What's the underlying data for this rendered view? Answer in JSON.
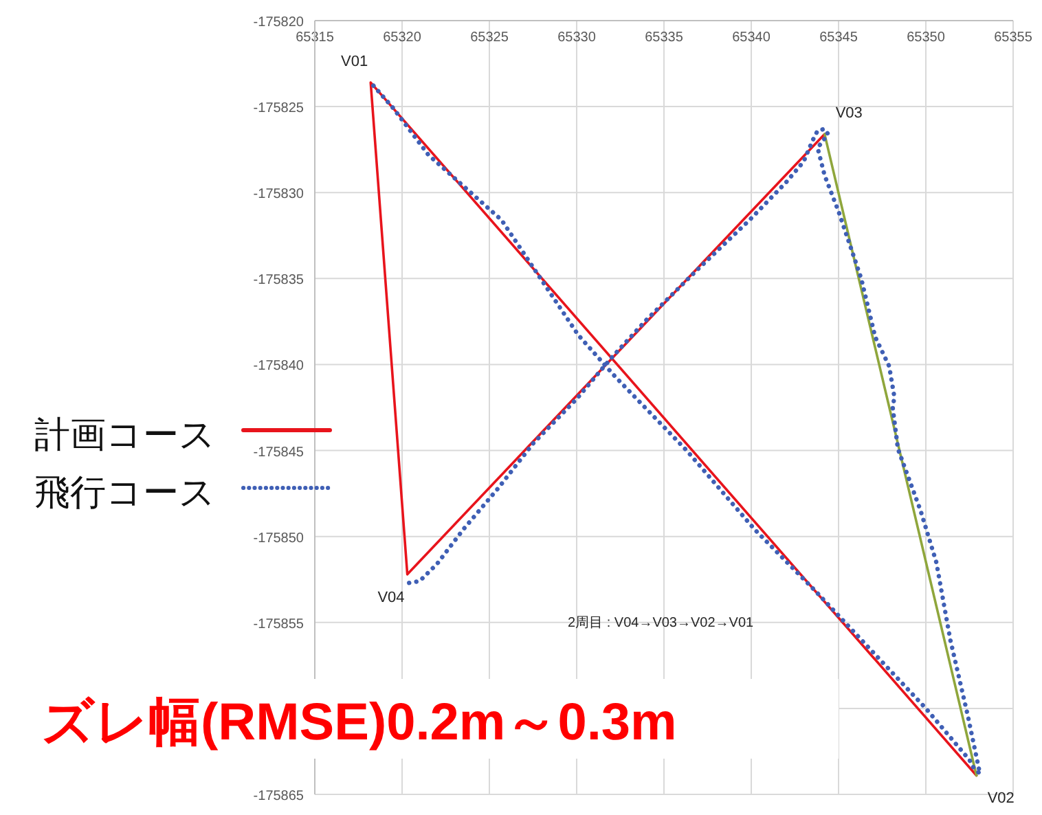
{
  "chart_data": {
    "type": "line",
    "xlim": [
      65315,
      65355
    ],
    "xticks": [
      65315,
      65320,
      65325,
      65330,
      65335,
      65340,
      65345,
      65350,
      65355
    ],
    "ylim": [
      -175865,
      -175820
    ],
    "yticks": [
      -175865,
      {
        "value": -175860,
        "label": null
      },
      -175855,
      -175850,
      -175845,
      -175840,
      -175835,
      -175830,
      -175825,
      -175820
    ],
    "grid": true,
    "legend": "left",
    "marker": "none",
    "series": [
      {
        "name": "計画コース",
        "color": "#e8141c",
        "line_style": "solid",
        "x": [
          65344.2,
          65320.3,
          65318.2,
          65352.9
        ],
        "values": [
          -175826.6,
          -175852.2,
          -175823.6,
          -175863.9
        ]
      },
      {
        "color": "#8fa63c",
        "line_style": "solid",
        "x": [
          65344.2,
          65352.9
        ],
        "values": [
          -175826.6,
          -175863.9
        ]
      },
      {
        "name": "飛行コース",
        "color": "#3f5fb5",
        "line_style": "dotted",
        "x": [
          65320.4,
          65321.0,
          65322.0,
          65323.5,
          65325.5,
          65327.5,
          65330.0,
          65332.0,
          65334.0,
          65337.0,
          65339.9,
          65342.0,
          65343.0,
          65343.5,
          65343.8,
          65344.2,
          65344.4,
          65343.8,
          65344.2,
          65345.0,
          65346.3,
          65347.1,
          65347.9,
          65348.2,
          65348.1,
          65348.4,
          65349.7,
          65350.6,
          65351.4,
          65352.4,
          65353.1,
          65352.7,
          65352.5,
          65350.0,
          65343.7,
          65340.2,
          65336.3,
          65332.2,
          65330.1,
          65325.7,
          65321.5,
          65319.5,
          65318.2
        ],
        "values": [
          -175852.7,
          -175852.6,
          -175851.6,
          -175849.6,
          -175847.2,
          -175844.6,
          -175842.0,
          -175839.6,
          -175837.4,
          -175834.4,
          -175831.6,
          -175829.4,
          -175828.2,
          -175827.0,
          -175826.4,
          -175826.3,
          -175826.6,
          -175827.4,
          -175829.0,
          -175831.1,
          -175835.0,
          -175838.4,
          -175840.1,
          -175841.9,
          -175842.5,
          -175844.9,
          -175848.5,
          -175851.5,
          -175856.0,
          -175860.4,
          -175863.8,
          -175863.4,
          -175863.0,
          -175860.0,
          -175853.2,
          -175849.6,
          -175845.0,
          -175840.7,
          -175838.3,
          -175831.6,
          -175827.8,
          -175825.1,
          -175823.6
        ]
      }
    ],
    "annotations": [
      {
        "text": "V01",
        "x": 65318.2,
        "y": -175823.6
      },
      {
        "text": "V03",
        "x": 65344.2,
        "y": -175826.6
      },
      {
        "text": "V04",
        "x": 65320.3,
        "y": -175852.2
      },
      {
        "text": "V02",
        "x": 65352.9,
        "y": -175863.9
      },
      "2周目 : V04→V03→V02→V01",
      "ズレ幅(RMSE)0.2m～0.3m"
    ]
  }
}
